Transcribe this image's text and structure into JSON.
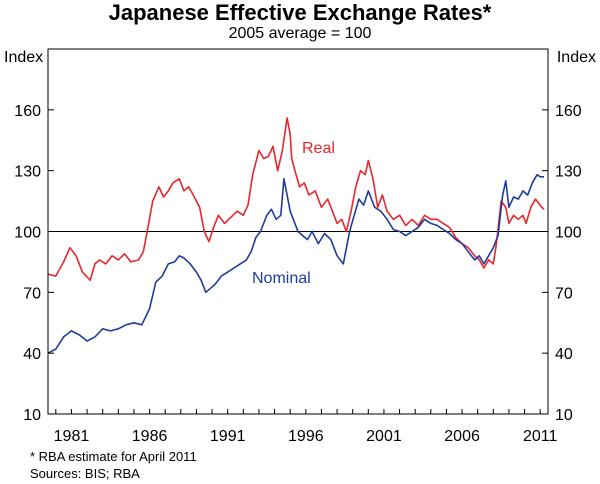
{
  "chart_data": {
    "type": "line",
    "title": "Japanese Effective Exchange Rates*",
    "subtitle": "2005 average = 100",
    "ylabel_left": "Index",
    "ylabel_right": "Index",
    "ylim": [
      10,
      190
    ],
    "yticks": [
      10,
      40,
      70,
      100,
      130,
      160
    ],
    "xlim": [
      1979.5,
      2011.5
    ],
    "xticks": [
      1981,
      1986,
      1991,
      1996,
      2001,
      2006,
      2011
    ],
    "reference_line": 100,
    "footnote": "*     RBA estimate for April 2011",
    "sources": "Sources: BIS; RBA",
    "series": [
      {
        "name": "Real",
        "color": "#e8262e",
        "x": [
          1979.5,
          1980.0,
          1980.5,
          1980.9,
          1981.3,
          1981.7,
          1982.2,
          1982.5,
          1982.8,
          1983.2,
          1983.6,
          1984.0,
          1984.4,
          1984.8,
          1985.3,
          1985.6,
          1985.9,
          1986.2,
          1986.6,
          1986.9,
          1987.2,
          1987.5,
          1987.9,
          1988.2,
          1988.5,
          1988.8,
          1989.2,
          1989.5,
          1989.8,
          1990.1,
          1990.4,
          1990.8,
          1991.2,
          1991.6,
          1992.0,
          1992.3,
          1992.6,
          1993.0,
          1993.3,
          1993.6,
          1993.9,
          1994.2,
          1994.5,
          1994.8,
          1995.0,
          1995.1,
          1995.3,
          1995.6,
          1995.9,
          1996.2,
          1996.6,
          1997.0,
          1997.4,
          1997.7,
          1998.0,
          1998.3,
          1998.6,
          1998.9,
          1999.2,
          1999.5,
          1999.8,
          2000.0,
          2000.3,
          2000.6,
          2000.9,
          2001.2,
          2001.6,
          2002.0,
          2002.4,
          2002.8,
          2003.2,
          2003.6,
          2004.0,
          2004.4,
          2004.8,
          2005.2,
          2005.6,
          2006.0,
          2006.4,
          2006.8,
          2007.1,
          2007.4,
          2007.7,
          2008.0,
          2008.2,
          2008.5,
          2008.8,
          2009.0,
          2009.3,
          2009.6,
          2009.9,
          2010.1,
          2010.4,
          2010.7,
          2010.9,
          2011.1,
          2011.25
        ],
        "values": [
          79,
          78,
          85,
          92,
          88,
          80,
          76,
          84,
          86,
          84,
          88,
          86,
          89,
          85,
          86,
          90,
          102,
          115,
          122,
          117,
          120,
          124,
          126,
          120,
          122,
          118,
          112,
          100,
          95,
          102,
          108,
          104,
          107,
          110,
          108,
          113,
          128,
          140,
          136,
          137,
          142,
          130,
          140,
          156,
          148,
          136,
          130,
          122,
          124,
          118,
          120,
          112,
          116,
          110,
          104,
          106,
          100,
          110,
          122,
          130,
          128,
          135,
          126,
          112,
          118,
          110,
          106,
          108,
          103,
          106,
          103,
          108,
          106,
          106,
          104,
          102,
          97,
          94,
          92,
          88,
          86,
          82,
          86,
          84,
          94,
          115,
          112,
          104,
          108,
          106,
          108,
          104,
          112,
          116,
          114,
          112,
          111
        ]
      },
      {
        "name": "Nominal",
        "color": "#1f3c9c",
        "x": [
          1979.5,
          1980.0,
          1980.5,
          1981.0,
          1981.5,
          1982.0,
          1982.5,
          1983.0,
          1983.5,
          1984.0,
          1984.5,
          1985.0,
          1985.5,
          1986.0,
          1986.4,
          1986.8,
          1987.2,
          1987.6,
          1987.9,
          1988.2,
          1988.6,
          1989.0,
          1989.3,
          1989.6,
          1989.9,
          1990.2,
          1990.6,
          1991.0,
          1991.4,
          1991.8,
          1992.2,
          1992.5,
          1992.8,
          1993.1,
          1993.5,
          1993.8,
          1994.1,
          1994.4,
          1994.6,
          1994.8,
          1995.0,
          1995.2,
          1995.5,
          1995.8,
          1996.1,
          1996.4,
          1996.8,
          1997.2,
          1997.6,
          1998.0,
          1998.4,
          1998.8,
          1999.1,
          1999.4,
          1999.7,
          2000.0,
          2000.4,
          2000.8,
          2001.2,
          2001.6,
          2002.0,
          2002.4,
          2002.8,
          2003.2,
          2003.6,
          2004.0,
          2004.4,
          2004.8,
          2005.2,
          2005.6,
          2006.0,
          2006.4,
          2006.8,
          2007.1,
          2007.4,
          2007.7,
          2008.0,
          2008.3,
          2008.6,
          2008.8,
          2009.0,
          2009.3,
          2009.6,
          2009.9,
          2010.2,
          2010.5,
          2010.8,
          2011.0,
          2011.25
        ],
        "values": [
          40,
          42,
          48,
          51,
          49,
          46,
          48,
          52,
          51,
          52,
          54,
          55,
          54,
          62,
          75,
          78,
          84,
          85,
          88,
          87,
          84,
          80,
          76,
          70,
          72,
          74,
          78,
          80,
          82,
          84,
          86,
          90,
          97,
          100,
          108,
          111,
          106,
          108,
          126,
          118,
          110,
          106,
          100,
          98,
          96,
          100,
          94,
          99,
          96,
          88,
          84,
          100,
          108,
          116,
          113,
          120,
          112,
          110,
          106,
          101,
          100,
          98,
          100,
          102,
          106,
          104,
          103,
          101,
          99,
          96,
          94,
          90,
          86,
          88,
          84,
          88,
          92,
          98,
          118,
          125,
          112,
          117,
          116,
          120,
          118,
          124,
          128,
          127,
          127
        ]
      }
    ]
  },
  "labels": {
    "real": "Real",
    "nominal": "Nominal"
  }
}
